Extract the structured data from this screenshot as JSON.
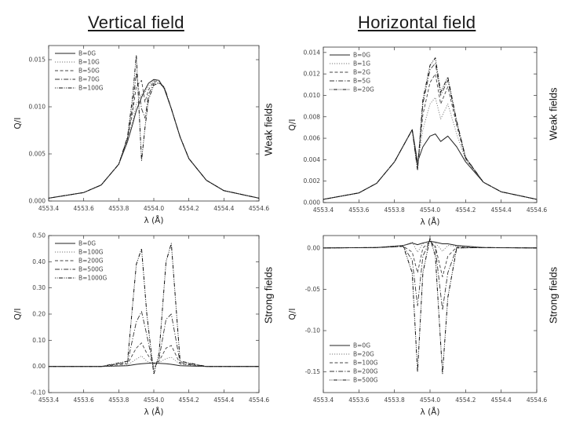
{
  "headings": {
    "left": "Vertical field",
    "right": "Horizontal field"
  },
  "side_labels": {
    "tl": "Weak fields",
    "tr": "Weak fields",
    "bl": "Strong fields",
    "br": "Strong fields"
  },
  "chart_data": [
    {
      "id": "tl",
      "type": "line",
      "title": "",
      "xlabel": "λ (Å)",
      "ylabel": "Q/I",
      "xlim": [
        4553.4,
        4554.6
      ],
      "ylim": [
        0.0,
        0.0165
      ],
      "xticks": [
        4553.4,
        4553.6,
        4553.8,
        4554.0,
        4554.2,
        4554.4,
        4554.6
      ],
      "xtick_labels": [
        "4553.4",
        "4553.6",
        "4553.8",
        "4554.0",
        "4554.2",
        "4554.4",
        "4554.6"
      ],
      "yticks": [
        0.0,
        0.005,
        0.01,
        0.015
      ],
      "ytick_labels": [
        "0.000",
        "0.005",
        "0.010",
        "0.015"
      ],
      "legend": [
        "B=0G",
        "B=10G",
        "B=50G",
        "B=70G",
        "B=100G"
      ],
      "legend_position": "top-left",
      "series": [
        {
          "name": "B=0G",
          "x": [
            4553.4,
            4553.6,
            4553.7,
            4553.8,
            4553.85,
            4553.88,
            4553.9,
            4553.93,
            4553.95,
            4553.97,
            4554.0,
            4554.03,
            4554.06,
            4554.1,
            4554.15,
            4554.2,
            4554.3,
            4554.4,
            4554.6
          ],
          "y": [
            0.0003,
            0.0009,
            0.0017,
            0.0039,
            0.0063,
            0.0082,
            0.0096,
            0.011,
            0.0118,
            0.0125,
            0.0129,
            0.0128,
            0.0119,
            0.0098,
            0.0068,
            0.0045,
            0.0022,
            0.0011,
            0.0003
          ]
        },
        {
          "name": "B=10G",
          "x": [
            4553.4,
            4553.6,
            4553.7,
            4553.8,
            4553.85,
            4553.88,
            4553.9,
            4553.93,
            4553.95,
            4553.97,
            4554.0,
            4554.03,
            4554.06,
            4554.1,
            4554.15,
            4554.2,
            4554.3,
            4554.4,
            4554.6
          ],
          "y": [
            0.0003,
            0.0009,
            0.0017,
            0.0039,
            0.0064,
            0.0085,
            0.0103,
            0.0113,
            0.0115,
            0.0122,
            0.0128,
            0.0128,
            0.0119,
            0.0098,
            0.0068,
            0.0045,
            0.0022,
            0.0011,
            0.0003
          ]
        },
        {
          "name": "B=50G",
          "x": [
            4553.4,
            4553.6,
            4553.7,
            4553.8,
            4553.85,
            4553.88,
            4553.9,
            4553.93,
            4553.95,
            4553.97,
            4554.0,
            4554.03,
            4554.06,
            4554.1,
            4554.15,
            4554.2,
            4554.3,
            4554.4,
            4554.6
          ],
          "y": [
            0.0003,
            0.0009,
            0.0017,
            0.0039,
            0.0066,
            0.0095,
            0.0122,
            0.0128,
            0.0105,
            0.0118,
            0.0127,
            0.0127,
            0.012,
            0.0098,
            0.0068,
            0.0045,
            0.0022,
            0.0011,
            0.0003
          ]
        },
        {
          "name": "B=70G",
          "x": [
            4553.4,
            4553.6,
            4553.7,
            4553.8,
            4553.85,
            4553.88,
            4553.9,
            4553.93,
            4553.95,
            4553.97,
            4554.0,
            4554.03,
            4554.06,
            4554.1,
            4554.15,
            4554.2,
            4554.3,
            4554.4,
            4554.6
          ],
          "y": [
            0.0003,
            0.0009,
            0.0017,
            0.0039,
            0.0067,
            0.0102,
            0.0136,
            0.0098,
            0.0088,
            0.0113,
            0.0125,
            0.0126,
            0.012,
            0.0098,
            0.0068,
            0.0045,
            0.0022,
            0.0011,
            0.0003
          ]
        },
        {
          "name": "B=100G",
          "x": [
            4553.4,
            4553.6,
            4553.7,
            4553.8,
            4553.85,
            4553.88,
            4553.9,
            4553.93,
            4553.95,
            4553.97,
            4554.0,
            4554.03,
            4554.06,
            4554.1,
            4554.15,
            4554.2,
            4554.3,
            4554.4,
            4554.6
          ],
          "y": [
            0.0003,
            0.0009,
            0.0017,
            0.0039,
            0.0068,
            0.0112,
            0.0155,
            0.0043,
            0.0078,
            0.0108,
            0.0123,
            0.0125,
            0.0121,
            0.0098,
            0.0068,
            0.0045,
            0.0022,
            0.0011,
            0.0003
          ]
        }
      ]
    },
    {
      "id": "tr",
      "type": "line",
      "title": "",
      "xlabel": "λ (Å)",
      "ylabel": "Q/I",
      "xlim": [
        4553.4,
        4554.6
      ],
      "ylim": [
        0.0,
        0.0145
      ],
      "xticks": [
        4553.4,
        4553.6,
        4553.8,
        4554.0,
        4554.2,
        4554.4,
        4554.6
      ],
      "xtick_labels": [
        "4553.4",
        "4553.6",
        "4553.8",
        "4554.0",
        "4554.2",
        "4554.4",
        "4554.6"
      ],
      "yticks": [
        0.0,
        0.002,
        0.004,
        0.006,
        0.008,
        0.01,
        0.012,
        0.014
      ],
      "ytick_labels": [
        "0.000",
        "0.002",
        "0.004",
        "0.006",
        "0.008",
        "0.010",
        "0.012",
        "0.014"
      ],
      "legend": [
        "B=0G",
        "B=1G",
        "B=2G",
        "B=5G",
        "B=20G"
      ],
      "legend_position": "top-left",
      "series": [
        {
          "name": "B=0G",
          "x": [
            4553.4,
            4553.6,
            4553.7,
            4553.8,
            4553.88,
            4553.9,
            4553.93,
            4553.96,
            4554.0,
            4554.03,
            4554.06,
            4554.1,
            4554.15,
            4554.2,
            4554.3,
            4554.4,
            4554.6
          ],
          "y": [
            0.0003,
            0.0009,
            0.0018,
            0.0038,
            0.0062,
            0.0068,
            0.0038,
            0.0052,
            0.0062,
            0.0064,
            0.0057,
            0.0062,
            0.0052,
            0.0038,
            0.0019,
            0.001,
            0.0003
          ]
        },
        {
          "name": "B=1G",
          "x": [
            4553.4,
            4553.6,
            4553.7,
            4553.8,
            4553.88,
            4553.9,
            4553.93,
            4553.96,
            4554.0,
            4554.03,
            4554.06,
            4554.1,
            4554.15,
            4554.2,
            4554.3,
            4554.4,
            4554.6
          ],
          "y": [
            0.0003,
            0.0009,
            0.0018,
            0.0038,
            0.0062,
            0.0068,
            0.0035,
            0.0068,
            0.0092,
            0.0098,
            0.0078,
            0.0092,
            0.0064,
            0.004,
            0.0019,
            0.001,
            0.0003
          ]
        },
        {
          "name": "B=2G",
          "x": [
            4553.4,
            4553.6,
            4553.7,
            4553.8,
            4553.88,
            4553.9,
            4553.93,
            4553.96,
            4554.0,
            4554.03,
            4554.06,
            4554.1,
            4554.15,
            4554.2,
            4554.3,
            4554.4,
            4554.6
          ],
          "y": [
            0.0003,
            0.0009,
            0.0018,
            0.0038,
            0.0062,
            0.0068,
            0.0033,
            0.0082,
            0.0112,
            0.012,
            0.0092,
            0.0108,
            0.0072,
            0.0041,
            0.0019,
            0.001,
            0.0003
          ]
        },
        {
          "name": "B=5G",
          "x": [
            4553.4,
            4553.6,
            4553.7,
            4553.8,
            4553.88,
            4553.9,
            4553.93,
            4553.96,
            4554.0,
            4554.03,
            4554.06,
            4554.1,
            4554.15,
            4554.2,
            4554.3,
            4554.4,
            4554.6
          ],
          "y": [
            0.0003,
            0.0009,
            0.0018,
            0.0038,
            0.0062,
            0.0068,
            0.0031,
            0.0092,
            0.0124,
            0.013,
            0.01,
            0.0114,
            0.0075,
            0.0042,
            0.0019,
            0.001,
            0.0003
          ]
        },
        {
          "name": "B=20G",
          "x": [
            4553.4,
            4553.6,
            4553.7,
            4553.8,
            4553.88,
            4553.9,
            4553.93,
            4553.96,
            4554.0,
            4554.03,
            4554.06,
            4554.1,
            4554.15,
            4554.2,
            4554.3,
            4554.4,
            4554.6
          ],
          "y": [
            0.0003,
            0.0009,
            0.0018,
            0.0038,
            0.0062,
            0.0068,
            0.003,
            0.0096,
            0.0128,
            0.0135,
            0.0103,
            0.0117,
            0.0076,
            0.0042,
            0.0019,
            0.001,
            0.0003
          ]
        }
      ]
    },
    {
      "id": "bl",
      "type": "line",
      "title": "",
      "xlabel": "λ (Å)",
      "ylabel": "Q/I",
      "xlim": [
        4553.4,
        4554.6
      ],
      "ylim": [
        -0.1,
        0.5
      ],
      "xticks": [
        4553.4,
        4553.6,
        4553.8,
        4554.0,
        4554.2,
        4554.4,
        4554.6
      ],
      "xtick_labels": [
        "4553.4",
        "4553.6",
        "4553.8",
        "4554.0",
        "4554.2",
        "4554.4",
        "4554.6"
      ],
      "yticks": [
        -0.1,
        0.0,
        0.1,
        0.2,
        0.3,
        0.4,
        0.5
      ],
      "ytick_labels": [
        "-0.10",
        "0.00",
        "0.10",
        "0.20",
        "0.30",
        "0.40",
        "0.50"
      ],
      "legend": [
        "B=0G",
        "B=100G",
        "B=200G",
        "B=500G",
        "B=1000G"
      ],
      "legend_position": "top-left",
      "series": [
        {
          "name": "B=0G",
          "x": [
            4553.4,
            4553.7,
            4553.85,
            4553.9,
            4553.93,
            4553.96,
            4554.0,
            4554.03,
            4554.07,
            4554.1,
            4554.15,
            4554.3,
            4554.6
          ],
          "y": [
            0.0,
            0.0,
            0.003,
            0.008,
            0.01,
            0.012,
            0.013,
            0.012,
            0.01,
            0.008,
            0.003,
            0.0,
            0.0
          ]
        },
        {
          "name": "B=100G",
          "x": [
            4553.4,
            4553.7,
            4553.85,
            4553.9,
            4553.93,
            4553.96,
            4554.0,
            4554.03,
            4554.07,
            4554.1,
            4554.15,
            4554.3,
            4554.6
          ],
          "y": [
            0.0,
            0.0,
            0.005,
            0.028,
            0.04,
            0.02,
            0.01,
            0.015,
            0.03,
            0.035,
            0.008,
            0.0,
            0.0
          ]
        },
        {
          "name": "B=200G",
          "x": [
            4553.4,
            4553.7,
            4553.85,
            4553.9,
            4553.93,
            4553.96,
            4554.0,
            4554.03,
            4554.07,
            4554.1,
            4554.15,
            4554.3,
            4554.6
          ],
          "y": [
            0.0,
            0.0,
            0.01,
            0.07,
            0.09,
            0.05,
            0.01,
            0.02,
            0.07,
            0.08,
            0.01,
            0.0,
            0.0
          ]
        },
        {
          "name": "B=500G",
          "x": [
            4553.4,
            4553.7,
            4553.85,
            4553.9,
            4553.93,
            4553.96,
            4554.0,
            4554.03,
            4554.07,
            4554.1,
            4554.15,
            4554.3,
            4554.6
          ],
          "y": [
            0.0,
            0.0,
            0.015,
            0.17,
            0.21,
            0.12,
            -0.01,
            0.03,
            0.18,
            0.2,
            0.015,
            0.0,
            0.0
          ]
        },
        {
          "name": "B=1000G",
          "x": [
            4553.4,
            4553.7,
            4553.85,
            4553.9,
            4553.93,
            4553.96,
            4554.0,
            4554.03,
            4554.07,
            4554.1,
            4554.15,
            4554.3,
            4554.6
          ],
          "y": [
            0.0,
            0.0,
            0.02,
            0.39,
            0.45,
            0.2,
            -0.03,
            0.05,
            0.4,
            0.47,
            0.02,
            0.0,
            0.0
          ]
        }
      ]
    },
    {
      "id": "br",
      "type": "line",
      "title": "",
      "xlabel": "λ (Å)",
      "ylabel": "Q/I",
      "xlim": [
        4553.4,
        4554.6
      ],
      "ylim": [
        -0.175,
        0.015
      ],
      "xticks": [
        4553.4,
        4553.6,
        4553.8,
        4554.0,
        4554.2,
        4554.4,
        4554.6
      ],
      "xtick_labels": [
        "4553.4",
        "4553.6",
        "4553.8",
        "4554.0",
        "4554.2",
        "4554.4",
        "4554.6"
      ],
      "yticks": [
        -0.15,
        -0.1,
        -0.05,
        0.0
      ],
      "ytick_labels": [
        "-0.15",
        "-0.10",
        "-0.05",
        "0.00"
      ],
      "legend": [
        "B=0G",
        "B=20G",
        "B=100G",
        "B=200G",
        "B=500G"
      ],
      "legend_position": "bottom-left",
      "series": [
        {
          "name": "B=0G",
          "x": [
            4553.4,
            4553.7,
            4553.85,
            4553.9,
            4553.93,
            4553.96,
            4554.0,
            4554.03,
            4554.07,
            4554.1,
            4554.15,
            4554.3,
            4554.6
          ],
          "y": [
            0.0,
            0.0005,
            0.003,
            0.006,
            0.004,
            0.006,
            0.008,
            0.007,
            0.005,
            0.005,
            0.003,
            0.0005,
            0.0
          ]
        },
        {
          "name": "B=20G",
          "x": [
            4553.4,
            4553.7,
            4553.85,
            4553.9,
            4553.93,
            4553.96,
            4554.0,
            4554.03,
            4554.07,
            4554.1,
            4554.15,
            4554.3,
            4554.6
          ],
          "y": [
            0.0,
            0.0005,
            0.003,
            0.007,
            -0.005,
            0.005,
            0.009,
            0.006,
            -0.004,
            0.003,
            0.002,
            0.0005,
            0.0
          ]
        },
        {
          "name": "B=100G",
          "x": [
            4553.4,
            4553.7,
            4553.85,
            4553.9,
            4553.93,
            4553.96,
            4554.0,
            4554.03,
            4554.07,
            4554.1,
            4554.15,
            4554.3,
            4554.6
          ],
          "y": [
            0.0,
            0.0005,
            0.002,
            -0.005,
            -0.03,
            0.0,
            0.008,
            0.002,
            -0.035,
            -0.01,
            0.001,
            0.0005,
            0.0
          ]
        },
        {
          "name": "B=200G",
          "x": [
            4553.4,
            4553.7,
            4553.85,
            4553.9,
            4553.93,
            4553.96,
            4554.0,
            4554.03,
            4554.07,
            4554.1,
            4554.15,
            4554.3,
            4554.6
          ],
          "y": [
            0.0,
            0.0005,
            0.002,
            -0.015,
            -0.07,
            -0.01,
            0.009,
            0.0,
            -0.075,
            -0.03,
            0.0,
            0.0005,
            0.0
          ]
        },
        {
          "name": "B=500G",
          "x": [
            4553.4,
            4553.7,
            4553.85,
            4553.9,
            4553.93,
            4553.96,
            4554.0,
            4554.03,
            4554.07,
            4554.1,
            4554.15,
            4554.3,
            4554.6
          ],
          "y": [
            0.0,
            0.0005,
            0.002,
            -0.03,
            -0.15,
            -0.03,
            0.012,
            -0.01,
            -0.152,
            -0.06,
            0.0,
            0.0005,
            0.0
          ]
        }
      ]
    }
  ]
}
